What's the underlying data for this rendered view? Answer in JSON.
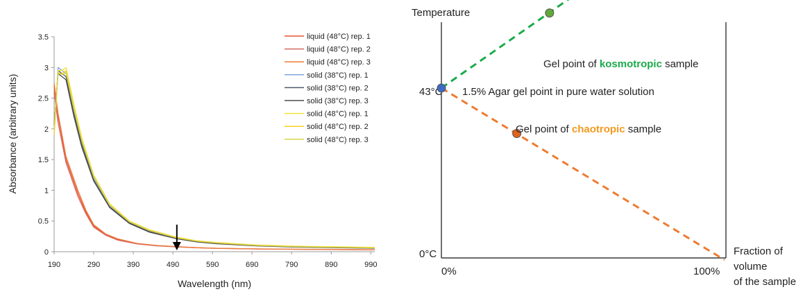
{
  "chart_data": [
    {
      "type": "line",
      "xlabel": "Wavelength  (nm)",
      "ylabel": "Absorbance (arbitrary units)",
      "xlim": [
        190,
        1000
      ],
      "ylim": [
        0,
        3.5
      ],
      "x_ticks": [
        "190",
        "290",
        "390",
        "490",
        "590",
        "690",
        "790",
        "890",
        "990"
      ],
      "y_ticks": [
        "0",
        "0.5",
        "1",
        "1.5",
        "2",
        "2.5",
        "3",
        "3.5"
      ],
      "grid": false,
      "legend_position": "top-right",
      "annotation": "down arrow at 500 nm",
      "arrow_x": 500,
      "series": [
        {
          "name": "liquid (48°C) rep. 1",
          "color": "#e8532c",
          "x": [
            190,
            200,
            220,
            250,
            270,
            290,
            320,
            350,
            400,
            450,
            500,
            550,
            600,
            700,
            800,
            900,
            1000
          ],
          "y": [
            2.7,
            2.2,
            1.5,
            0.95,
            0.65,
            0.42,
            0.28,
            0.2,
            0.13,
            0.1,
            0.08,
            0.065,
            0.055,
            0.045,
            0.04,
            0.035,
            0.03
          ]
        },
        {
          "name": "liquid (48°C) rep. 2",
          "color": "#d46a62",
          "x": [
            190,
            200,
            220,
            250,
            270,
            290,
            320,
            350,
            400,
            450,
            500,
            550,
            600,
            700,
            800,
            900,
            1000
          ],
          "y": [
            2.6,
            2.1,
            1.45,
            0.9,
            0.62,
            0.4,
            0.27,
            0.19,
            0.125,
            0.095,
            0.078,
            0.063,
            0.054,
            0.044,
            0.039,
            0.034,
            0.03
          ]
        },
        {
          "name": "liquid (48°C) rep. 3",
          "color": "#ee7b3c",
          "x": [
            190,
            200,
            220,
            250,
            270,
            290,
            320,
            350,
            400,
            450,
            500,
            550,
            600,
            700,
            800,
            900,
            1000
          ],
          "y": [
            2.75,
            2.25,
            1.55,
            1.0,
            0.68,
            0.44,
            0.29,
            0.21,
            0.135,
            0.102,
            0.082,
            0.066,
            0.056,
            0.046,
            0.041,
            0.036,
            0.031
          ]
        },
        {
          "name": "solid (38°C) rep. 1",
          "color": "#7fa7d9",
          "x": [
            190,
            200,
            210,
            220,
            240,
            260,
            290,
            330,
            380,
            430,
            500,
            550,
            600,
            700,
            800,
            900,
            1000
          ],
          "y": [
            1.9,
            3.0,
            2.95,
            2.9,
            2.3,
            1.8,
            1.2,
            0.75,
            0.48,
            0.34,
            0.22,
            0.17,
            0.14,
            0.1,
            0.08,
            0.07,
            0.06
          ]
        },
        {
          "name": "solid (38°C) rep. 2",
          "color": "#4b5a6c",
          "x": [
            190,
            200,
            210,
            220,
            240,
            260,
            290,
            330,
            380,
            430,
            500,
            550,
            600,
            700,
            800,
            900,
            1000
          ],
          "y": [
            2.0,
            2.95,
            2.9,
            2.85,
            2.25,
            1.75,
            1.17,
            0.73,
            0.47,
            0.33,
            0.215,
            0.165,
            0.135,
            0.098,
            0.078,
            0.068,
            0.058
          ]
        },
        {
          "name": "solid (38°C) rep. 3",
          "color": "#4a4a4a",
          "x": [
            190,
            200,
            210,
            220,
            240,
            260,
            290,
            330,
            380,
            430,
            500,
            550,
            600,
            700,
            800,
            900,
            1000
          ],
          "y": [
            2.05,
            2.9,
            2.85,
            2.8,
            2.2,
            1.7,
            1.15,
            0.72,
            0.46,
            0.32,
            0.21,
            0.16,
            0.13,
            0.095,
            0.076,
            0.066,
            0.056
          ]
        },
        {
          "name": "solid (48°C) rep. 1",
          "color": "#f2e33a",
          "x": [
            190,
            200,
            210,
            220,
            240,
            260,
            290,
            330,
            380,
            430,
            500,
            550,
            600,
            700,
            800,
            900,
            1000
          ],
          "y": [
            1.95,
            2.95,
            2.95,
            3.0,
            2.4,
            1.85,
            1.25,
            0.78,
            0.5,
            0.36,
            0.235,
            0.18,
            0.15,
            0.11,
            0.09,
            0.08,
            0.07
          ]
        },
        {
          "name": "solid (48°C) rep. 2",
          "color": "#f4cf2a",
          "x": [
            190,
            200,
            210,
            220,
            240,
            260,
            290,
            330,
            380,
            430,
            500,
            550,
            600,
            700,
            800,
            900,
            1000
          ],
          "y": [
            1.9,
            2.9,
            2.9,
            2.95,
            2.35,
            1.82,
            1.23,
            0.77,
            0.49,
            0.35,
            0.23,
            0.175,
            0.145,
            0.105,
            0.085,
            0.075,
            0.065
          ]
        },
        {
          "name": "solid (48°C) rep. 3",
          "color": "#d9d54a",
          "x": [
            190,
            200,
            210,
            220,
            240,
            260,
            290,
            330,
            380,
            430,
            500,
            550,
            600,
            700,
            800,
            900,
            1000
          ],
          "y": [
            2.0,
            2.92,
            2.88,
            2.92,
            2.32,
            1.8,
            1.22,
            0.76,
            0.485,
            0.345,
            0.225,
            0.172,
            0.142,
            0.102,
            0.082,
            0.072,
            0.062
          ]
        }
      ]
    },
    {
      "type": "line",
      "ylabel": "Temperature",
      "xlabel_lines": [
        "Fraction of",
        "volume",
        "of the sample"
      ],
      "x_ticks": [
        "0%",
        "100%"
      ],
      "y_ticks": [
        "0°C",
        "43°C"
      ],
      "ylim": [
        0,
        43
      ],
      "series": [
        {
          "name": "kosmotropic",
          "color": "#1aab4a",
          "style": "dashed",
          "x": [
            0,
            0.815
          ],
          "y": [
            43,
            84
          ]
        },
        {
          "name": "chaotropic",
          "color": "#ee7b30",
          "style": "dashed",
          "x": [
            0,
            0.995
          ],
          "y": [
            43,
            -0.5
          ]
        }
      ],
      "points": [
        {
          "id": "pure",
          "x": 0,
          "y": 43,
          "color": "#3d6bc4"
        },
        {
          "id": "kosmo",
          "x": 0.38,
          "y": 62,
          "color": "#5fa83a"
        },
        {
          "id": "chao",
          "x": 0.265,
          "y": 31.5,
          "color": "#e0621e"
        }
      ],
      "labels": {
        "pure": "1.5% Agar gel point in pure water solution",
        "kosmo_pre": "Gel point of ",
        "kosmo_key": "kosmotropic",
        "kosmo_post": " sample",
        "kosmo_key_color": "#1aab4a",
        "chao_pre": "Gel point of ",
        "chao_key": "chaotropic",
        "chao_post": " sample",
        "chao_key_color": "#f39a1f"
      }
    }
  ]
}
